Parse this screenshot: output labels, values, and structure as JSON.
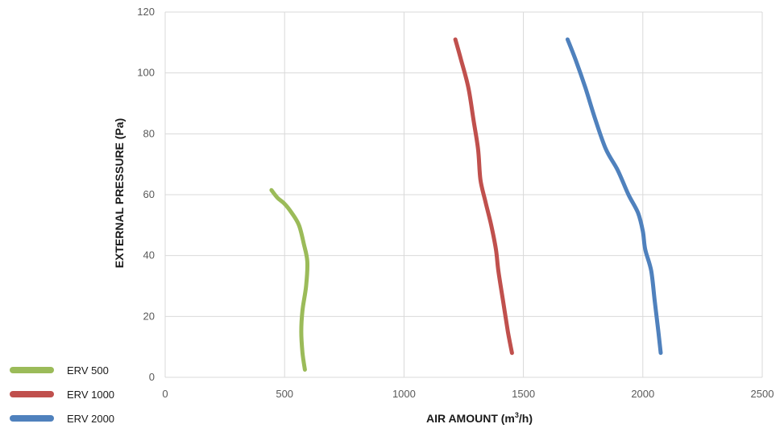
{
  "chart_data": {
    "type": "line",
    "title": "",
    "xlabel_main": "AIR AMOUNT  (m",
    "xlabel_sup": "3",
    "xlabel_end": "/h)",
    "ylabel": "EXTERNAL PRESSURE  (Pa)",
    "xlim": [
      0,
      2500
    ],
    "ylim": [
      0,
      120
    ],
    "xticks": [
      0,
      500,
      1000,
      1500,
      2000,
      2500
    ],
    "yticks": [
      0,
      20,
      40,
      60,
      80,
      100,
      120
    ],
    "grid": true,
    "legend_position": "bottom-left",
    "series": [
      {
        "name": "ERV 500",
        "color": "#9bbb59",
        "points": [
          [
            445,
            61.5
          ],
          [
            470,
            59
          ],
          [
            500,
            57
          ],
          [
            530,
            54
          ],
          [
            560,
            50
          ],
          [
            580,
            44
          ],
          [
            595,
            38
          ],
          [
            590,
            30
          ],
          [
            575,
            22
          ],
          [
            570,
            15
          ],
          [
            575,
            8
          ],
          [
            585,
            2.5
          ]
        ]
      },
      {
        "name": "ERV 1000",
        "color": "#c0504d",
        "points": [
          [
            1215,
            111
          ],
          [
            1240,
            104
          ],
          [
            1270,
            95
          ],
          [
            1290,
            85
          ],
          [
            1310,
            75
          ],
          [
            1320,
            65
          ],
          [
            1340,
            58
          ],
          [
            1365,
            50
          ],
          [
            1385,
            42
          ],
          [
            1395,
            35
          ],
          [
            1415,
            25
          ],
          [
            1435,
            15
          ],
          [
            1452,
            8
          ]
        ]
      },
      {
        "name": "ERV 2000",
        "color": "#4f81bd",
        "points": [
          [
            1685,
            111
          ],
          [
            1720,
            104
          ],
          [
            1760,
            95
          ],
          [
            1800,
            85
          ],
          [
            1845,
            75
          ],
          [
            1895,
            68
          ],
          [
            1940,
            60
          ],
          [
            1980,
            54
          ],
          [
            2000,
            48
          ],
          [
            2010,
            42
          ],
          [
            2035,
            35
          ],
          [
            2050,
            25
          ],
          [
            2065,
            15
          ],
          [
            2075,
            8
          ]
        ]
      }
    ]
  }
}
